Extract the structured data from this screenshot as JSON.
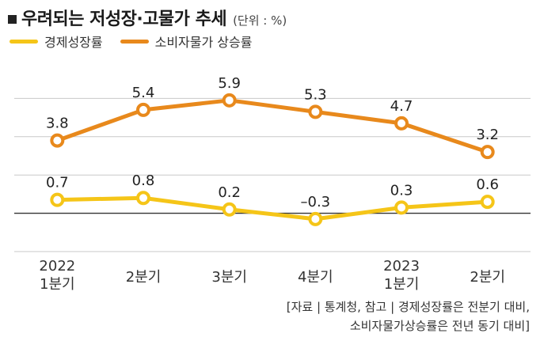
{
  "header": {
    "title": "우려되는 저성장·고물가 추세",
    "unit": "(단위 : %)"
  },
  "legend": [
    {
      "label": "경제성장률",
      "color": "#F5C518"
    },
    {
      "label": "소비자물가 상승률",
      "color": "#E8891C"
    }
  ],
  "chart_data": {
    "type": "line",
    "x": [
      [
        "2022",
        "1분기"
      ],
      [
        "2분기"
      ],
      [
        "3분기"
      ],
      [
        "4분기"
      ],
      [
        "2023",
        "1분기"
      ],
      [
        "2분기"
      ]
    ],
    "series": [
      {
        "name": "경제성장률",
        "color": "#F5C518",
        "values": [
          0.7,
          0.8,
          0.2,
          -0.3,
          0.3,
          0.6
        ],
        "labels": [
          "0.7",
          "0.8",
          "0.2",
          "–0.3",
          "0.3",
          "0.6"
        ]
      },
      {
        "name": "소비자물가 상승률",
        "color": "#E8891C",
        "values": [
          3.8,
          5.4,
          5.9,
          5.3,
          4.7,
          3.2
        ],
        "labels": [
          "3.8",
          "5.4",
          "5.9",
          "5.3",
          "4.7",
          "3.2"
        ]
      }
    ],
    "ylim": [
      -2,
      8
    ],
    "grid": true
  },
  "source": {
    "line1": "[자료 | 통계청, 참고 | 경제성장률은 전분기 대비,",
    "line2": "소비자물가상승률은 전년 동기 대비]"
  }
}
